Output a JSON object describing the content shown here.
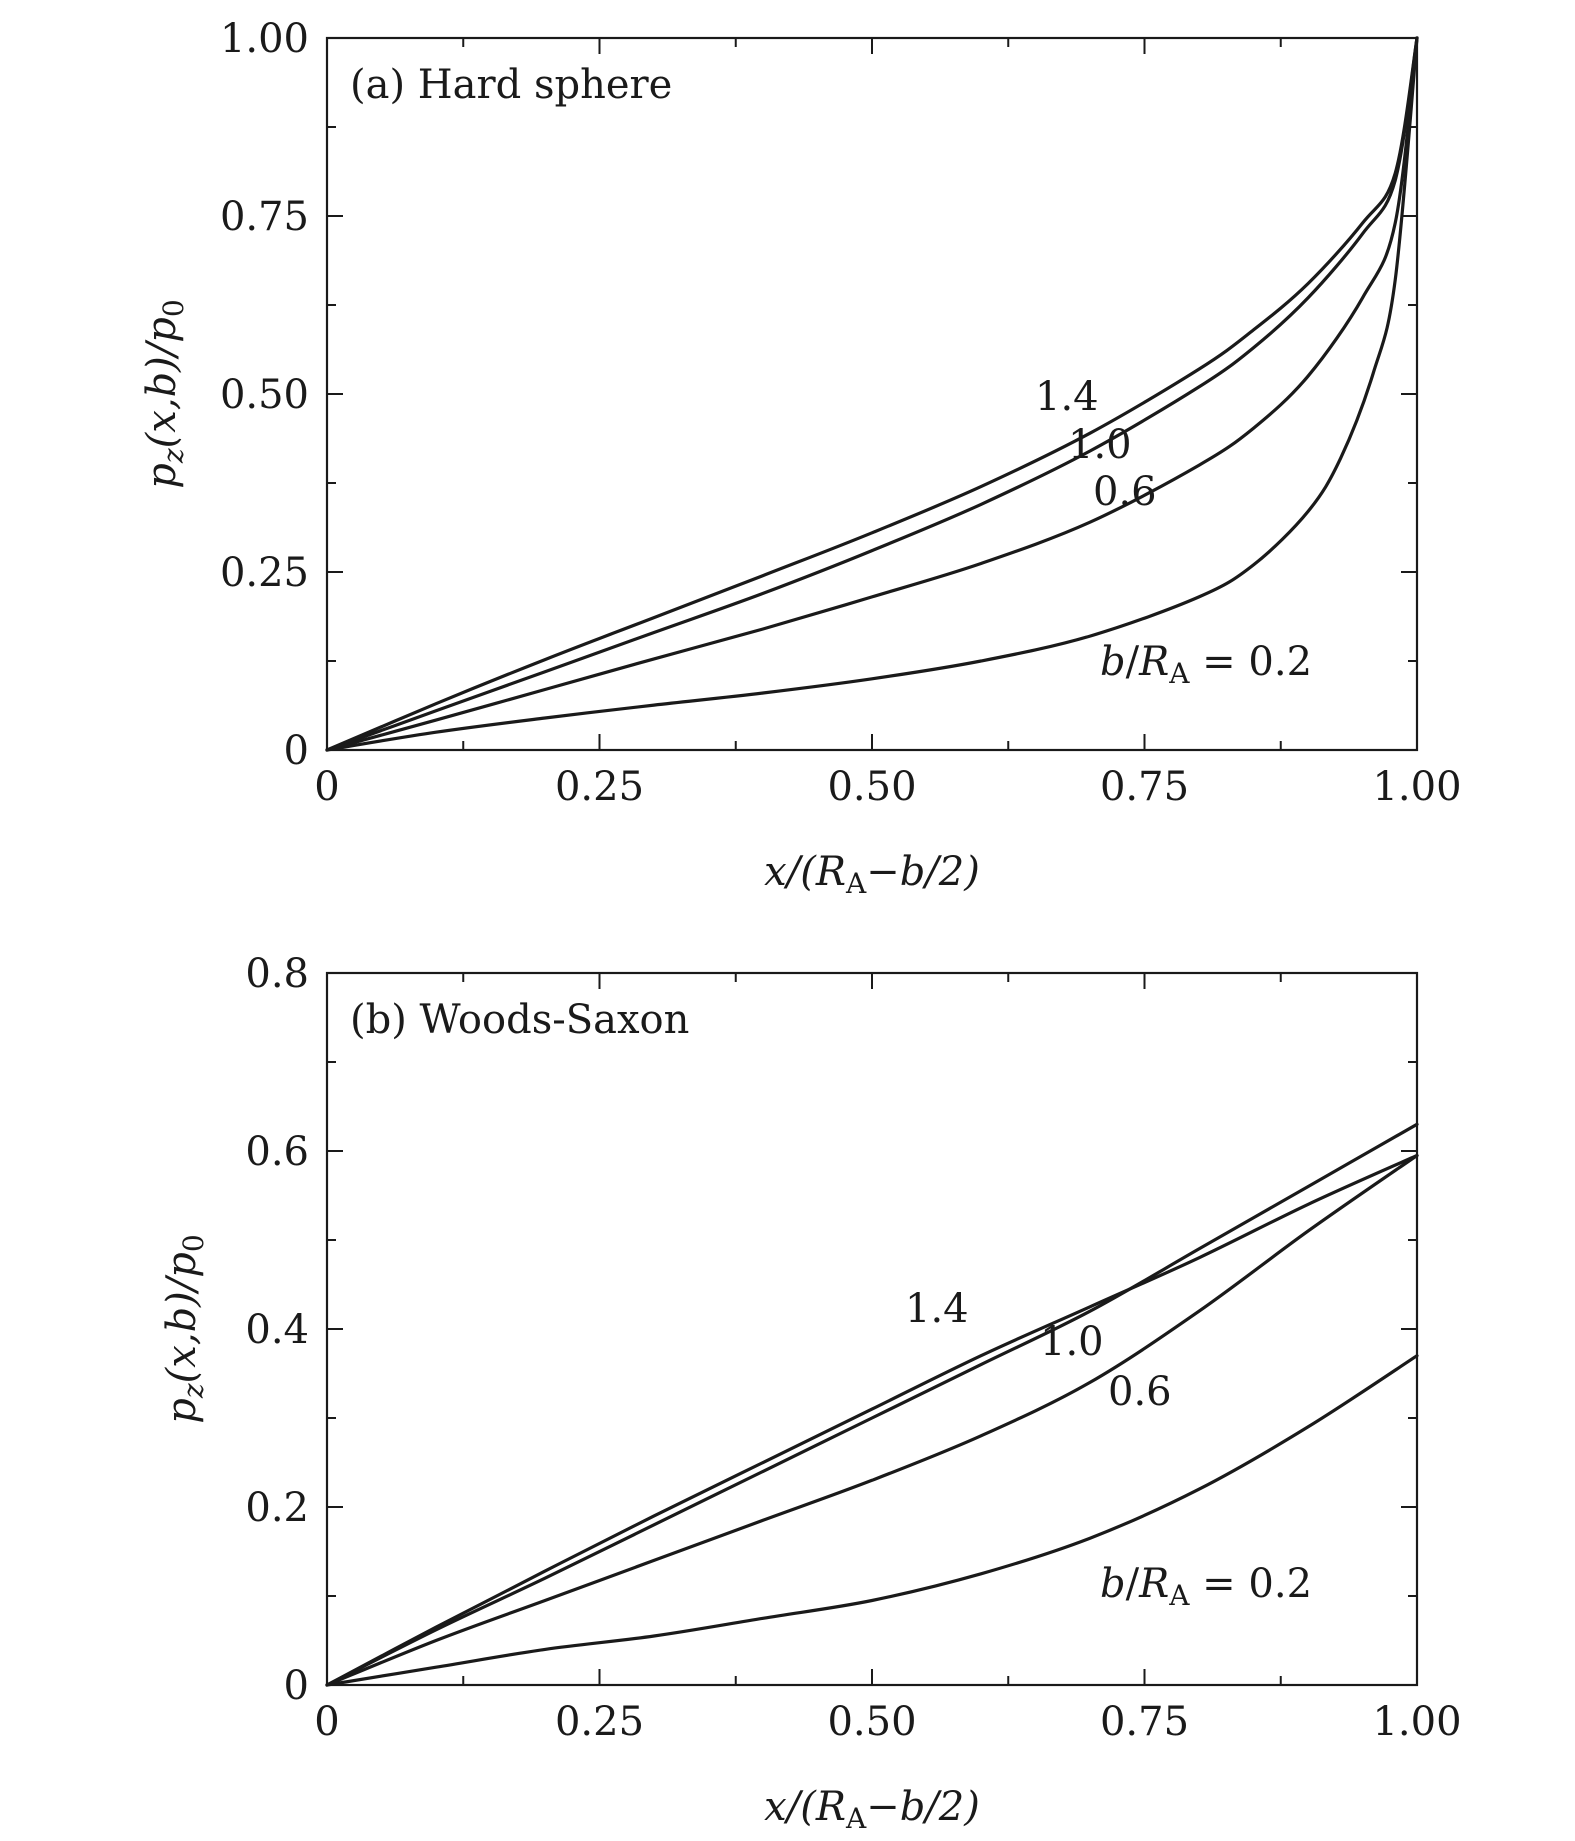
{
  "chart_data": [
    {
      "type": "line",
      "title": "(a) Hard sphere",
      "xlabel": "x/(R_A−b/2)",
      "ylabel": "p_z(x,b)/p_0",
      "xlim": [
        0,
        1
      ],
      "ylim": [
        0,
        1
      ],
      "x_ticks": [
        "0",
        "0.25",
        "0.50",
        "0.75",
        "1.00"
      ],
      "y_ticks": [
        "0",
        "0.25",
        "0.50",
        "0.75",
        "1.00"
      ],
      "grid": false,
      "annotations": [
        "1.4",
        "1.0",
        "0.6",
        "b/R_A = 0.2"
      ],
      "series": [
        {
          "x": [
            0,
            0.1,
            0.2,
            0.3,
            0.4,
            0.5,
            0.6,
            0.7,
            0.8,
            0.85,
            0.9,
            0.95,
            0.98,
            1.0
          ],
          "y": [
            0,
            0.065,
            0.127,
            0.186,
            0.245,
            0.305,
            0.37,
            0.445,
            0.535,
            0.59,
            0.655,
            0.74,
            0.81,
            1.0
          ]
        },
        {
          "x": [
            0,
            0.1,
            0.2,
            0.3,
            0.4,
            0.5,
            0.6,
            0.7,
            0.8,
            0.85,
            0.9,
            0.95,
            0.98,
            1.0
          ],
          "y": [
            0,
            0.055,
            0.11,
            0.165,
            0.22,
            0.28,
            0.345,
            0.42,
            0.51,
            0.565,
            0.635,
            0.725,
            0.8,
            1.0
          ]
        },
        {
          "x": [
            0,
            0.1,
            0.2,
            0.3,
            0.4,
            0.5,
            0.6,
            0.7,
            0.8,
            0.85,
            0.9,
            0.95,
            0.98,
            1.0
          ],
          "y": [
            0,
            0.042,
            0.085,
            0.128,
            0.17,
            0.215,
            0.262,
            0.32,
            0.4,
            0.452,
            0.525,
            0.635,
            0.74,
            1.0
          ]
        },
        {
          "x": [
            0,
            0.1,
            0.2,
            0.3,
            0.4,
            0.5,
            0.6,
            0.7,
            0.8,
            0.85,
            0.9,
            0.93,
            0.96,
            0.98,
            1.0
          ],
          "y": [
            0,
            0.025,
            0.045,
            0.063,
            0.08,
            0.1,
            0.125,
            0.16,
            0.215,
            0.26,
            0.335,
            0.41,
            0.53,
            0.66,
            1.0
          ]
        }
      ]
    },
    {
      "type": "line",
      "title": "(b) Woods-Saxon",
      "xlabel": "x/(R_A−b/2)",
      "ylabel": "p_z(x,b)/p_0",
      "xlim": [
        0,
        1
      ],
      "ylim": [
        0,
        0.8
      ],
      "x_ticks": [
        "0",
        "0.25",
        "0.50",
        "0.75",
        "1.00"
      ],
      "y_ticks": [
        "0",
        "0.2",
        "0.4",
        "0.6",
        "0.8"
      ],
      "grid": false,
      "annotations": [
        "1.4",
        "1.0",
        "0.6",
        "b/R_A = 0.2"
      ],
      "series": [
        {
          "x": [
            0,
            0.1,
            0.2,
            0.3,
            0.4,
            0.5,
            0.6,
            0.7,
            0.8,
            0.9,
            1.0
          ],
          "y": [
            0,
            0.065,
            0.128,
            0.19,
            0.25,
            0.31,
            0.37,
            0.425,
            0.48,
            0.54,
            0.595
          ]
        },
        {
          "x": [
            0,
            0.1,
            0.2,
            0.3,
            0.4,
            0.5,
            0.6,
            0.7,
            0.8,
            0.9,
            1.0
          ],
          "y": [
            0,
            0.062,
            0.12,
            0.18,
            0.24,
            0.3,
            0.36,
            0.42,
            0.49,
            0.56,
            0.63
          ]
        },
        {
          "x": [
            0,
            0.1,
            0.2,
            0.3,
            0.4,
            0.5,
            0.6,
            0.7,
            0.8,
            0.9,
            1.0
          ],
          "y": [
            0,
            0.05,
            0.095,
            0.14,
            0.185,
            0.23,
            0.28,
            0.34,
            0.42,
            0.51,
            0.595
          ]
        },
        {
          "x": [
            0,
            0.1,
            0.2,
            0.3,
            0.4,
            0.5,
            0.6,
            0.7,
            0.8,
            0.9,
            1.0
          ],
          "y": [
            0,
            0.02,
            0.04,
            0.055,
            0.075,
            0.095,
            0.125,
            0.165,
            0.22,
            0.29,
            0.37
          ]
        }
      ]
    }
  ]
}
